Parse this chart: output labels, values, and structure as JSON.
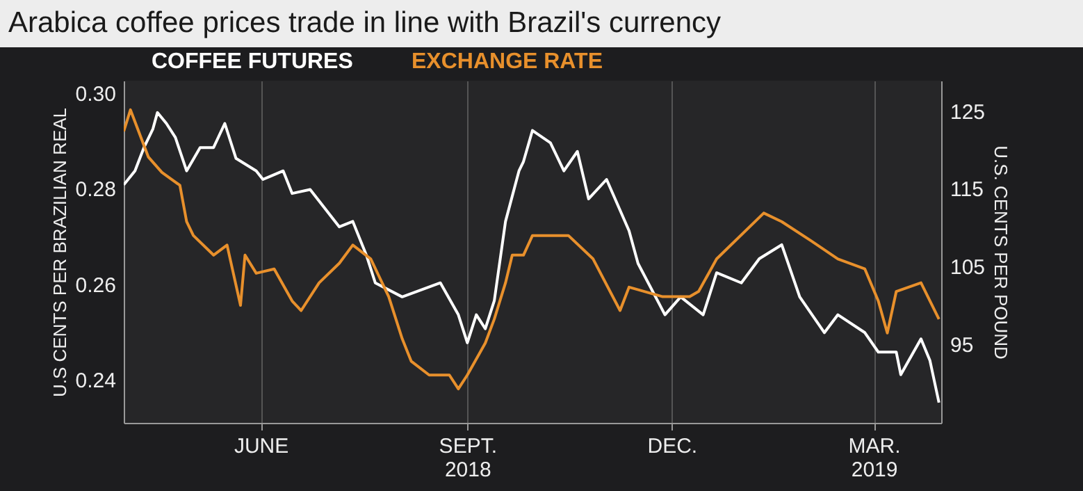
{
  "chart_data": {
    "type": "line",
    "title": "Arabica coffee prices trade in line with Brazil's currency",
    "ylabel": "U.S CENTS PER BRAZILIAN REAL",
    "y2label": "U.S. CENTS PER POUND",
    "xlim": [
      "2018-04-01",
      "2019-03-31"
    ],
    "xticks": [
      {
        "value": "2018-06-01",
        "label": "JUNE"
      },
      {
        "value": "2018-09-01",
        "label": "SEPT.\n2018"
      },
      {
        "value": "2018-12-01",
        "label": "DEC."
      },
      {
        "value": "2019-03-01",
        "label": "MAR.\n2019"
      }
    ],
    "ylim": [
      0.231,
      0.3026
    ],
    "yticks": [
      {
        "value": 0.24,
        "label": "0.24"
      },
      {
        "value": 0.26,
        "label": "0.26"
      },
      {
        "value": 0.28,
        "label": "0.28"
      },
      {
        "value": 0.3,
        "label": "0.30"
      }
    ],
    "y2lim": [
      84.9,
      128.9
    ],
    "y2ticks": [
      95,
      105,
      115,
      125
    ],
    "grid": "x",
    "legend": "top left",
    "series": [
      {
        "name": "COFFEE FUTURES",
        "color": "#ffffff",
        "axis": "y2",
        "x": [
          "2018-04-01",
          "2018-04-06",
          "2018-04-10",
          "2018-04-14",
          "2018-04-16",
          "2018-04-20",
          "2018-04-24",
          "2018-04-29",
          "2018-05-05",
          "2018-05-11",
          "2018-05-16",
          "2018-05-21",
          "2018-05-30",
          "2018-06-02",
          "2018-06-11",
          "2018-06-15",
          "2018-06-23",
          "2018-07-06",
          "2018-07-12",
          "2018-07-18",
          "2018-07-22",
          "2018-08-03",
          "2018-08-20",
          "2018-08-28",
          "2018-09-01",
          "2018-09-05",
          "2018-09-09",
          "2018-09-13",
          "2018-09-18",
          "2018-09-24",
          "2018-09-26",
          "2018-09-30",
          "2018-10-02",
          "2018-10-08",
          "2018-10-14",
          "2018-10-20",
          "2018-10-25",
          "2018-11-02",
          "2018-11-12",
          "2018-11-16",
          "2018-11-28",
          "2018-12-05",
          "2018-12-15",
          "2018-12-21",
          "2019-01-01",
          "2019-01-09",
          "2019-01-19",
          "2019-01-27",
          "2019-02-07",
          "2019-02-13",
          "2019-02-25",
          "2019-03-03",
          "2019-03-11",
          "2019-03-13",
          "2019-03-22",
          "2019-03-26",
          "2019-03-30"
        ],
        "values": [
          115.5,
          117.3,
          120.3,
          122.7,
          124.8,
          123.4,
          121.6,
          117.3,
          120.3,
          120.3,
          123.4,
          118.9,
          117.3,
          116.2,
          117.3,
          114.4,
          114.9,
          110.1,
          110.8,
          106.5,
          102.9,
          101.1,
          102.9,
          98.8,
          95.2,
          98.8,
          97.0,
          100.6,
          110.8,
          117.3,
          118.5,
          122.5,
          122.1,
          120.9,
          117.3,
          119.8,
          113.7,
          116.2,
          109.6,
          105.4,
          98.8,
          101.1,
          98.8,
          104.2,
          102.9,
          106.0,
          107.8,
          101.1,
          96.5,
          98.8,
          96.5,
          94.0,
          94.0,
          91.1,
          95.7,
          92.9,
          87.5
        ]
      },
      {
        "name": "EXCHANGE RATE",
        "color": "#e8902c",
        "axis": "y",
        "x": [
          "2018-04-01",
          "2018-04-04",
          "2018-04-12",
          "2018-04-18",
          "2018-04-26",
          "2018-04-29",
          "2018-05-02",
          "2018-05-11",
          "2018-05-17",
          "2018-05-23",
          "2018-05-25",
          "2018-05-30",
          "2018-06-07",
          "2018-06-15",
          "2018-06-19",
          "2018-06-27",
          "2018-07-06",
          "2018-07-12",
          "2018-07-20",
          "2018-07-28",
          "2018-08-03",
          "2018-08-07",
          "2018-08-15",
          "2018-08-24",
          "2018-08-28",
          "2018-09-01",
          "2018-09-09",
          "2018-09-13",
          "2018-09-18",
          "2018-09-21",
          "2018-09-26",
          "2018-09-30",
          "2018-10-16",
          "2018-10-27",
          "2018-11-08",
          "2018-11-12",
          "2018-11-27",
          "2018-12-09",
          "2018-12-13",
          "2018-12-21",
          "2019-01-11",
          "2019-01-19",
          "2019-02-01",
          "2019-02-13",
          "2019-02-25",
          "2019-03-03",
          "2019-03-07",
          "2019-03-11",
          "2019-03-22",
          "2019-03-30"
        ],
        "values": [
          0.292,
          0.2965,
          0.2866,
          0.2834,
          0.2807,
          0.2731,
          0.2702,
          0.2661,
          0.2682,
          0.2556,
          0.2661,
          0.2623,
          0.2632,
          0.2565,
          0.2545,
          0.2603,
          0.2644,
          0.2682,
          0.2653,
          0.2574,
          0.2486,
          0.2439,
          0.241,
          0.241,
          0.2381,
          0.241,
          0.2477,
          0.2527,
          0.2603,
          0.2661,
          0.2661,
          0.2702,
          0.2702,
          0.2653,
          0.2545,
          0.2594,
          0.2574,
          0.2574,
          0.2585,
          0.2653,
          0.2749,
          0.2731,
          0.2691,
          0.2653,
          0.2632,
          0.2565,
          0.2498,
          0.2585,
          0.2603,
          0.2527
        ]
      }
    ]
  }
}
